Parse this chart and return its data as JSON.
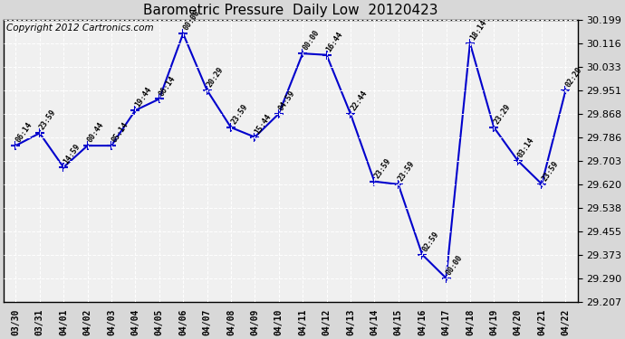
{
  "title": "Barometric Pressure  Daily Low  20120423",
  "copyright": "Copyright 2012 Cartronics.com",
  "x_labels": [
    "03/30",
    "03/31",
    "04/01",
    "04/02",
    "04/03",
    "04/04",
    "04/05",
    "04/06",
    "04/07",
    "04/08",
    "04/09",
    "04/10",
    "04/11",
    "04/12",
    "04/13",
    "04/14",
    "04/15",
    "04/16",
    "04/17",
    "04/18",
    "04/19",
    "04/20",
    "04/21",
    "04/22"
  ],
  "y_values": [
    29.756,
    29.8,
    29.68,
    29.756,
    29.756,
    29.88,
    29.92,
    30.15,
    29.951,
    29.82,
    29.786,
    29.868,
    30.08,
    30.075,
    29.868,
    29.63,
    29.62,
    29.373,
    29.29,
    30.116,
    29.82,
    29.703,
    29.621,
    29.951,
    29.94
  ],
  "time_labels": [
    "06:14",
    "23:59",
    "14:59",
    "00:44",
    "05:14",
    "19:44",
    "06:14",
    "00:00",
    "20:29",
    "23:59",
    "15:44",
    "04:59",
    "00:00",
    "16:44",
    "22:44",
    "23:59",
    "23:59",
    "02:59",
    "00:00",
    "18:14",
    "23:29",
    "03:14",
    "23:59",
    "02:29"
  ],
  "ylim_min": 29.207,
  "ylim_max": 30.199,
  "yticks": [
    29.207,
    29.29,
    29.373,
    29.455,
    29.538,
    29.62,
    29.703,
    29.786,
    29.868,
    29.951,
    30.033,
    30.116,
    30.199
  ],
  "line_color": "#0000cc",
  "marker_color": "#0000cc",
  "plot_bg_color": "#f0f0f0",
  "fig_bg_color": "#d8d8d8",
  "grid_color": "#ffffff",
  "border_color": "#000000",
  "title_fontsize": 11,
  "copyright_fontsize": 7.5
}
